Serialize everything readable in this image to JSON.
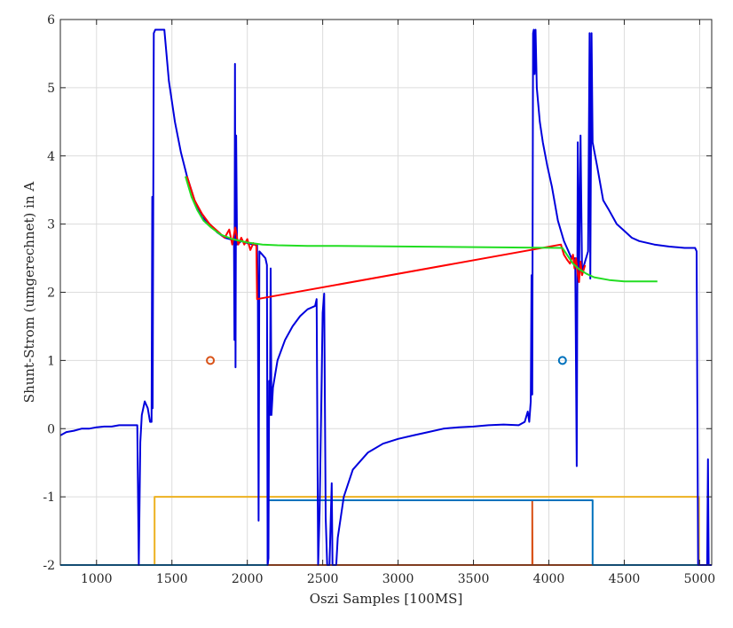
{
  "chart_data": {
    "type": "line",
    "xlabel": "Oszi Samples [100MS]",
    "ylabel": "Shunt-Strom (umgerechnet) in A",
    "xlim": [
      760,
      5080
    ],
    "ylim": [
      -2,
      6
    ],
    "xticks": [
      1000,
      1500,
      2000,
      2500,
      3000,
      3500,
      4000,
      4500,
      5000
    ],
    "yticks": [
      -2,
      -1,
      0,
      1,
      2,
      3,
      4,
      5,
      6
    ],
    "xtick_labels": [
      "1000",
      "1500",
      "2000",
      "2500",
      "3000",
      "3500",
      "4000",
      "4500",
      "5000"
    ],
    "ytick_labels": [
      "-2",
      "-1",
      "0",
      "1",
      "2",
      "3",
      "4",
      "5",
      "6"
    ],
    "grid": true,
    "series": [
      {
        "color": "#EDB120",
        "values": [
          [
            760,
            -2
          ],
          [
            1385,
            -2
          ],
          [
            1385,
            -1
          ],
          [
            4995,
            -1
          ],
          [
            4995,
            -2
          ],
          [
            5080,
            -2
          ]
        ]
      },
      {
        "color": "#D95319",
        "values": [
          [
            760,
            -2
          ],
          [
            3890,
            -2
          ],
          [
            3890,
            -1.05
          ],
          [
            3892,
            -2
          ],
          [
            5080,
            -2
          ]
        ]
      },
      {
        "color": "#0072BD",
        "values": [
          [
            760,
            -2
          ],
          [
            2135,
            -2
          ],
          [
            2135,
            -1.05
          ],
          [
            4290,
            -1.05
          ],
          [
            4290,
            -2
          ],
          [
            5080,
            -2
          ]
        ]
      },
      {
        "color": "#0000DD",
        "values": [
          [
            760,
            -0.1
          ],
          [
            800,
            -0.05
          ],
          [
            850,
            -0.03
          ],
          [
            900,
            0
          ],
          [
            950,
            0
          ],
          [
            1000,
            0.02
          ],
          [
            1050,
            0.03
          ],
          [
            1100,
            0.03
          ],
          [
            1150,
            0.05
          ],
          [
            1200,
            0.05
          ],
          [
            1250,
            0.05
          ],
          [
            1270,
            0.05
          ],
          [
            1280,
            -2
          ],
          [
            1290,
            -0.2
          ],
          [
            1300,
            0.2
          ],
          [
            1320,
            0.4
          ],
          [
            1340,
            0.3
          ],
          [
            1355,
            0.1
          ],
          [
            1365,
            0.1
          ],
          [
            1370,
            3.4
          ],
          [
            1372,
            0.3
          ],
          [
            1380,
            5.8
          ],
          [
            1390,
            5.85
          ],
          [
            1400,
            5.85
          ],
          [
            1450,
            5.85
          ],
          [
            1460,
            5.6
          ],
          [
            1480,
            5.1
          ],
          [
            1520,
            4.5
          ],
          [
            1560,
            4.05
          ],
          [
            1600,
            3.7
          ],
          [
            1650,
            3.35
          ],
          [
            1700,
            3.1
          ],
          [
            1750,
            3.0
          ],
          [
            1800,
            2.88
          ],
          [
            1850,
            2.8
          ],
          [
            1900,
            2.77
          ],
          [
            1912,
            2.7
          ],
          [
            1915,
            1.3
          ],
          [
            1918,
            5.35
          ],
          [
            1922,
            0.9
          ],
          [
            1926,
            4.3
          ],
          [
            1932,
            2.7
          ],
          [
            1960,
            2.75
          ],
          [
            2000,
            2.72
          ],
          [
            2040,
            2.7
          ],
          [
            2065,
            2.7
          ],
          [
            2070,
            1.9
          ],
          [
            2075,
            -1.35
          ],
          [
            2080,
            2.6
          ],
          [
            2100,
            2.55
          ],
          [
            2120,
            2.5
          ],
          [
            2130,
            2.4
          ],
          [
            2135,
            -2
          ],
          [
            2140,
            -1.9
          ],
          [
            2145,
            0.7
          ],
          [
            2150,
            0.2
          ],
          [
            2155,
            2.35
          ],
          [
            2160,
            0.2
          ],
          [
            2170,
            0.6
          ],
          [
            2200,
            1.0
          ],
          [
            2250,
            1.3
          ],
          [
            2300,
            1.5
          ],
          [
            2350,
            1.65
          ],
          [
            2400,
            1.75
          ],
          [
            2450,
            1.8
          ],
          [
            2460,
            1.9
          ],
          [
            2470,
            -2
          ],
          [
            2480,
            -1.2
          ],
          [
            2500,
            1.7
          ],
          [
            2510,
            1.98
          ],
          [
            2520,
            -1.3
          ],
          [
            2530,
            -2
          ],
          [
            2545,
            -2
          ],
          [
            2560,
            -0.8
          ],
          [
            2565,
            -2
          ],
          [
            2590,
            -2
          ],
          [
            2600,
            -1.6
          ],
          [
            2640,
            -1.0
          ],
          [
            2700,
            -0.6
          ],
          [
            2800,
            -0.35
          ],
          [
            2900,
            -0.22
          ],
          [
            3000,
            -0.15
          ],
          [
            3100,
            -0.1
          ],
          [
            3200,
            -0.05
          ],
          [
            3300,
            0
          ],
          [
            3400,
            0.02
          ],
          [
            3500,
            0.03
          ],
          [
            3600,
            0.05
          ],
          [
            3700,
            0.06
          ],
          [
            3800,
            0.05
          ],
          [
            3840,
            0.1
          ],
          [
            3860,
            0.25
          ],
          [
            3870,
            0.1
          ],
          [
            3880,
            0.4
          ],
          [
            3885,
            2.25
          ],
          [
            3890,
            0.5
          ],
          [
            3895,
            5.8
          ],
          [
            3900,
            5.85
          ],
          [
            3905,
            5.2
          ],
          [
            3912,
            5.85
          ],
          [
            3920,
            5.0
          ],
          [
            3940,
            4.5
          ],
          [
            3960,
            4.2
          ],
          [
            3990,
            3.85
          ],
          [
            4020,
            3.55
          ],
          [
            4060,
            3.05
          ],
          [
            4100,
            2.75
          ],
          [
            4150,
            2.5
          ],
          [
            4175,
            2.5
          ],
          [
            4185,
            -0.55
          ],
          [
            4192,
            4.2
          ],
          [
            4200,
            2.2
          ],
          [
            4210,
            4.3
          ],
          [
            4220,
            2.3
          ],
          [
            4240,
            2.45
          ],
          [
            4260,
            2.6
          ],
          [
            4270,
            5.8
          ],
          [
            4275,
            2.2
          ],
          [
            4283,
            5.8
          ],
          [
            4290,
            4.2
          ],
          [
            4320,
            3.85
          ],
          [
            4360,
            3.35
          ],
          [
            4400,
            3.2
          ],
          [
            4450,
            3.0
          ],
          [
            4500,
            2.9
          ],
          [
            4550,
            2.8
          ],
          [
            4600,
            2.75
          ],
          [
            4700,
            2.7
          ],
          [
            4800,
            2.67
          ],
          [
            4900,
            2.65
          ],
          [
            4970,
            2.65
          ],
          [
            4980,
            2.6
          ],
          [
            4990,
            -2
          ],
          [
            5040,
            -2
          ],
          [
            5050,
            -2
          ],
          [
            5055,
            -0.45
          ],
          [
            5060,
            -2
          ],
          [
            5080,
            -2
          ]
        ]
      },
      {
        "color": "#FF0000",
        "values": [
          [
            1600,
            3.7
          ],
          [
            1650,
            3.35
          ],
          [
            1700,
            3.15
          ],
          [
            1750,
            3.0
          ],
          [
            1800,
            2.9
          ],
          [
            1850,
            2.8
          ],
          [
            1880,
            2.92
          ],
          [
            1900,
            2.7
          ],
          [
            1920,
            2.95
          ],
          [
            1940,
            2.7
          ],
          [
            1960,
            2.8
          ],
          [
            1980,
            2.7
          ],
          [
            2000,
            2.78
          ],
          [
            2020,
            2.62
          ],
          [
            2040,
            2.72
          ],
          [
            2060,
            2.68
          ],
          [
            2065,
            1.9
          ],
          [
            4080,
            2.7
          ],
          [
            4100,
            2.55
          ],
          [
            4120,
            2.48
          ],
          [
            4140,
            2.42
          ],
          [
            4160,
            2.55
          ],
          [
            4170,
            2.35
          ],
          [
            4180,
            2.5
          ],
          [
            4190,
            2.3
          ],
          [
            4200,
            2.15
          ],
          [
            4210,
            2.45
          ],
          [
            4220,
            2.25
          ],
          [
            4240,
            2.4
          ]
        ]
      },
      {
        "color": "#22DD22",
        "values": [
          [
            1590,
            3.7
          ],
          [
            1630,
            3.4
          ],
          [
            1670,
            3.2
          ],
          [
            1710,
            3.05
          ],
          [
            1760,
            2.95
          ],
          [
            1820,
            2.85
          ],
          [
            1900,
            2.78
          ],
          [
            2000,
            2.73
          ],
          [
            2100,
            2.7
          ],
          [
            2200,
            2.69
          ],
          [
            2400,
            2.68
          ],
          [
            2570,
            2.68
          ],
          [
            4090,
            2.65
          ],
          [
            4120,
            2.55
          ],
          [
            4160,
            2.42
          ],
          [
            4200,
            2.34
          ],
          [
            4250,
            2.27
          ],
          [
            4300,
            2.22
          ],
          [
            4400,
            2.18
          ],
          [
            4500,
            2.16
          ],
          [
            4600,
            2.16
          ],
          [
            4720,
            2.16
          ]
        ]
      }
    ],
    "markers": [
      {
        "x": 1755,
        "y": 1.0,
        "color": "#D95319"
      },
      {
        "x": 4090,
        "y": 1.0,
        "color": "#0072BD"
      }
    ]
  }
}
